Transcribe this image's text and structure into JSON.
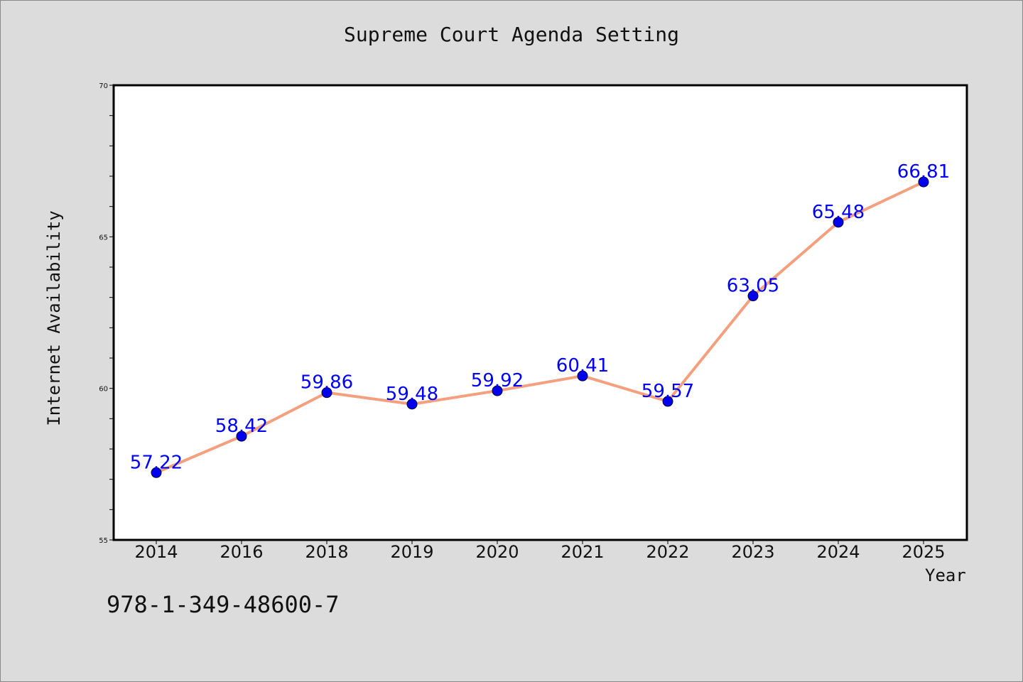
{
  "chart_data": {
    "type": "line",
    "title": "Supreme Court Agenda Setting",
    "xlabel": "Year",
    "ylabel": "Internet Availability",
    "categories": [
      "2014",
      "2016",
      "2018",
      "2019",
      "2020",
      "2021",
      "2022",
      "2023",
      "2024",
      "2025"
    ],
    "values": [
      57.22,
      58.42,
      59.86,
      59.48,
      59.92,
      60.41,
      59.57,
      63.05,
      65.48,
      66.81
    ],
    "data_labels": [
      "57.22",
      "58.42",
      "59.86",
      "59.48",
      "59.92",
      "60.41",
      "59.57",
      "63.05",
      "65.48",
      "66.81"
    ],
    "ylim": [
      55,
      70
    ],
    "yticks": [
      "55",
      "60",
      "65",
      "70"
    ],
    "grid": false,
    "line_color": "#f4a07e",
    "marker_color": "#0000ee",
    "label_color": "#0000ff"
  },
  "footer": {
    "isbn": "978-1-349-48600-7"
  }
}
